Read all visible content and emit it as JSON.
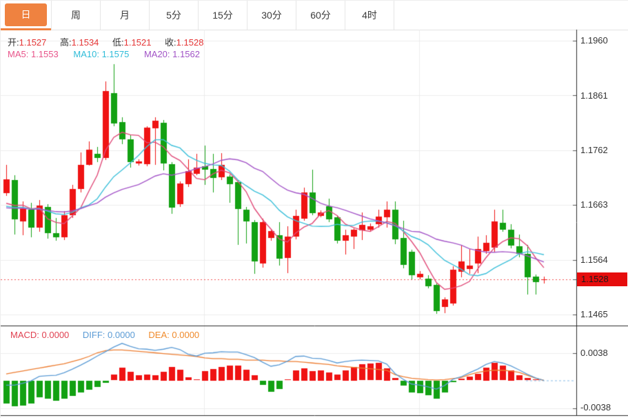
{
  "toolbar": {
    "tabs": [
      {
        "label": "日",
        "active": true
      },
      {
        "label": "周",
        "active": false
      },
      {
        "label": "月",
        "active": false
      },
      {
        "label": "5分",
        "active": false
      },
      {
        "label": "15分",
        "active": false
      },
      {
        "label": "30分",
        "active": false
      },
      {
        "label": "60分",
        "active": false
      },
      {
        "label": "4时",
        "active": false
      }
    ],
    "active_color": "#ef8240"
  },
  "main_chart": {
    "ohlc_legend": {
      "open_label": "开:",
      "open_value": "1.1527",
      "high_label": "高:",
      "high_value": "1.1534",
      "low_label": "低:",
      "low_value": "1.1521",
      "close_label": "收:",
      "close_value": "1.1528"
    },
    "ma_legend": {
      "ma5_label": "MA5:",
      "ma5_value": "1.1553",
      "ma10_label": "MA10:",
      "ma10_value": "1.1575",
      "ma20_label": "MA20:",
      "ma20_value": "1.1562"
    },
    "y_axis_labels": [
      "1.1960",
      "1.1861",
      "1.1762",
      "1.1663",
      "1.1564",
      "1.1465"
    ],
    "price_tag": "1.1528"
  },
  "macd_panel": {
    "legend": {
      "macd_label": "MACD:",
      "macd_value": "0.0000",
      "diff_label": "DIFF:",
      "diff_value": "0.0000",
      "dea_label": "DEA:",
      "dea_value": "0.0000"
    },
    "y_axis_labels": [
      "0.0038",
      "-0.0038"
    ]
  },
  "colors": {
    "up_candle": "#ef1313",
    "down_candle": "#13a113",
    "ma5_line": "#e04a78",
    "ma10_line": "#3ec0da",
    "ma20_line": "#a455c8",
    "diff_line": "#5b9bd5",
    "dea_line": "#ed7d31",
    "grid": "#ececec",
    "axis": "#2b2b2b",
    "current_price_line": "#f05050",
    "zero_dash_line": "#a8cdee",
    "price_tag_bg": "#e60d0d",
    "active_tab": "#ef8240"
  },
  "chart_data": {
    "type": "candlestick+macd",
    "candle_format": "o,h,l,c",
    "price_axis": {
      "min": 1.1465,
      "max": 1.196,
      "ticks": [
        1.196,
        1.1861,
        1.1762,
        1.1663,
        1.1564,
        1.1465
      ]
    },
    "macd_axis": {
      "ticks": [
        0.0038,
        -0.0038
      ]
    },
    "current_price": 1.1528,
    "ma_periods": [
      5,
      10,
      20
    ],
    "ma_seed_close": 1.1655,
    "candles": [
      [
        1.1685,
        1.1735,
        1.168,
        1.171
      ],
      [
        1.1708,
        1.1717,
        1.161,
        1.1637
      ],
      [
        1.1633,
        1.1669,
        1.1608,
        1.1657
      ],
      [
        1.1655,
        1.1667,
        1.1605,
        1.1622
      ],
      [
        1.1622,
        1.1672,
        1.1615,
        1.1662
      ],
      [
        1.166,
        1.1665,
        1.1602,
        1.1612
      ],
      [
        1.1612,
        1.164,
        1.1598,
        1.1605
      ],
      [
        1.1605,
        1.1652,
        1.16,
        1.1645
      ],
      [
        1.1645,
        1.17,
        1.164,
        1.1692
      ],
      [
        1.1692,
        1.1758,
        1.1686,
        1.1736
      ],
      [
        1.1736,
        1.1778,
        1.1734,
        1.1763
      ],
      [
        1.1756,
        1.1768,
        1.174,
        1.1748
      ],
      [
        1.1748,
        1.1886,
        1.1744,
        1.1869
      ],
      [
        1.1865,
        1.1918,
        1.1805,
        1.181
      ],
      [
        1.1813,
        1.1822,
        1.1773,
        1.1782
      ],
      [
        1.1782,
        1.179,
        1.173,
        1.1741
      ],
      [
        1.1738,
        1.1746,
        1.1734,
        1.1742
      ],
      [
        1.1737,
        1.1806,
        1.1733,
        1.1803
      ],
      [
        1.1801,
        1.1821,
        1.1735,
        1.1815
      ],
      [
        1.1812,
        1.1816,
        1.1726,
        1.1739
      ],
      [
        1.1737,
        1.1741,
        1.1647,
        1.1659
      ],
      [
        1.1665,
        1.1706,
        1.166,
        1.1702
      ],
      [
        1.17,
        1.1745,
        1.1696,
        1.1724
      ],
      [
        1.172,
        1.1755,
        1.1717,
        1.1731
      ],
      [
        1.1733,
        1.177,
        1.17,
        1.1727
      ],
      [
        1.1728,
        1.1755,
        1.1686,
        1.1712
      ],
      [
        1.1712,
        1.1757,
        1.1708,
        1.1735
      ],
      [
        1.1714,
        1.1718,
        1.1667,
        1.17
      ],
      [
        1.1704,
        1.1708,
        1.1591,
        1.1655
      ],
      [
        1.1655,
        1.1659,
        1.1593,
        1.1634
      ],
      [
        1.1632,
        1.1636,
        1.1538,
        1.1561
      ],
      [
        1.1557,
        1.1638,
        1.155,
        1.1632
      ],
      [
        1.1604,
        1.162,
        1.1598,
        1.1616
      ],
      [
        1.1608,
        1.1632,
        1.1554,
        1.1565
      ],
      [
        1.1567,
        1.1624,
        1.154,
        1.1606
      ],
      [
        1.1605,
        1.1655,
        1.1601,
        1.1643
      ],
      [
        1.1638,
        1.1694,
        1.1634,
        1.1686
      ],
      [
        1.1686,
        1.1727,
        1.1645,
        1.1649
      ],
      [
        1.1644,
        1.1653,
        1.1641,
        1.165
      ],
      [
        1.1661,
        1.1674,
        1.1632,
        1.1637
      ],
      [
        1.1641,
        1.1644,
        1.1593,
        1.1598
      ],
      [
        1.1598,
        1.1618,
        1.1573,
        1.1608
      ],
      [
        1.1606,
        1.1621,
        1.1583,
        1.1618
      ],
      [
        1.1617,
        1.165,
        1.16,
        1.1627
      ],
      [
        1.1619,
        1.1629,
        1.1615,
        1.1625
      ],
      [
        1.1628,
        1.1655,
        1.1622,
        1.1642
      ],
      [
        1.164,
        1.1669,
        1.1622,
        1.1654
      ],
      [
        1.1654,
        1.1669,
        1.1592,
        1.1601
      ],
      [
        1.1603,
        1.1634,
        1.1548,
        1.1554
      ],
      [
        1.1578,
        1.1582,
        1.1529,
        1.1535
      ],
      [
        1.1533,
        1.1543,
        1.1529,
        1.1539
      ],
      [
        1.153,
        1.1536,
        1.1512,
        1.1516
      ],
      [
        1.1518,
        1.1521,
        1.1466,
        1.147
      ],
      [
        1.1479,
        1.1496,
        1.1467,
        1.1493
      ],
      [
        1.1485,
        1.1552,
        1.1481,
        1.1546
      ],
      [
        1.1542,
        1.159,
        1.1532,
        1.1561
      ],
      [
        1.1548,
        1.1583,
        1.1538,
        1.1554
      ],
      [
        1.1557,
        1.1606,
        1.154,
        1.1583
      ],
      [
        1.158,
        1.1608,
        1.1575,
        1.1595
      ],
      [
        1.1586,
        1.1655,
        1.1577,
        1.1633
      ],
      [
        1.1631,
        1.1655,
        1.1614,
        1.1618
      ],
      [
        1.1618,
        1.1628,
        1.1585,
        1.1589
      ],
      [
        1.1589,
        1.161,
        1.1569,
        1.1575
      ],
      [
        1.1575,
        1.1591,
        1.1501,
        1.1532
      ],
      [
        1.1534,
        1.1537,
        1.1501,
        1.1524
      ],
      [
        1.1527,
        1.1534,
        1.1521,
        1.1528
      ]
    ],
    "macd_hist": [
      -0.0031,
      -0.0035,
      -0.0034,
      -0.0031,
      -0.0023,
      -0.0025,
      -0.0028,
      -0.0025,
      -0.0021,
      -0.0016,
      -0.0012,
      -0.0009,
      -0.0003,
      0.0008,
      0.0018,
      0.0012,
      0.0007,
      0.0008,
      0.0007,
      0.0012,
      0.0019,
      0.0015,
      0.0004,
      0.0001,
      0.0013,
      0.0016,
      0.0019,
      0.002,
      0.002,
      0.0015,
      0.0007,
      -0.0006,
      -0.0015,
      -0.0011,
      0.0001,
      0.0014,
      0.0017,
      0.0013,
      0.0014,
      0.0011,
      0.0008,
      0.0014,
      0.0019,
      0.0022,
      0.0023,
      0.0024,
      0.0017,
      0.0003,
      -0.0007,
      -0.0016,
      -0.0017,
      -0.002,
      -0.0025,
      -0.0016,
      -0.0002,
      0.0002,
      0.0005,
      0.0009,
      0.0018,
      0.0024,
      0.002,
      0.0014,
      0.0007,
      0.0003,
      0.0001,
      0.0
    ],
    "dea_line": [
      0.0009,
      0.0011,
      0.0013,
      0.0015,
      0.0017,
      0.0019,
      0.0021,
      0.0023,
      0.0026,
      0.0029,
      0.0033,
      0.0038,
      0.0041,
      0.0042,
      0.0042,
      0.0041,
      0.004,
      0.0039,
      0.0038,
      0.0037,
      0.0036,
      0.0035,
      0.0034,
      0.0033,
      0.0031,
      0.003,
      0.003,
      0.0029,
      0.0029,
      0.0028,
      0.0028,
      0.0028,
      0.0027,
      0.0027,
      0.0026,
      0.0026,
      0.0025,
      0.0024,
      0.0023,
      0.0022,
      0.002,
      0.0019,
      0.0018,
      0.0017,
      0.0016,
      0.0015,
      0.0014,
      0.0008,
      0.0005,
      0.0003,
      0.0002,
      0.0001,
      5e-05,
      0.0001,
      0.00025,
      0.0004,
      0.0008,
      0.0011,
      0.0013,
      0.0014,
      0.0014,
      0.0013,
      0.0011,
      0.0007,
      0.0003,
      0.0
    ]
  }
}
